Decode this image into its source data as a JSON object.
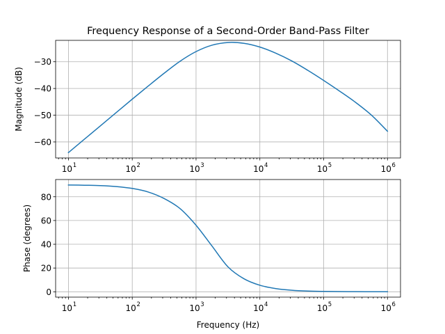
{
  "chart_data": [
    {
      "type": "line",
      "title": "Frequency Response of a Second-Order Band-Pass Filter",
      "xlabel": "",
      "ylabel": "Magnitude (dB)",
      "x_scale": "log",
      "xlim": [
        6.3,
        1600000.0
      ],
      "ylim": [
        -66,
        -22
      ],
      "grid": true,
      "x_ticks": [
        10,
        100,
        1000,
        10000,
        100000,
        1000000
      ],
      "x_tick_labels": [
        "10",
        "10",
        "10",
        "10",
        "10",
        "10"
      ],
      "x_tick_exponents": [
        "1",
        "2",
        "3",
        "4",
        "5",
        "6"
      ],
      "y_ticks": [
        -60,
        -50,
        -40,
        -30
      ],
      "y_tick_labels": [
        "−60",
        "−50",
        "−40",
        "−30"
      ],
      "series": [
        {
          "color": "#1f77b4",
          "x": [
            10,
            17.78,
            31.62,
            56.23,
            100,
            177.8,
            316.2,
            562.3,
            1000,
            1778,
            3162,
            5623,
            10000,
            17783,
            31623,
            56234,
            100000,
            177828,
            316228,
            562341,
            1000000
          ],
          "y": [
            -64.0,
            -59.0,
            -54.0,
            -49.0,
            -44.0,
            -39.1,
            -34.3,
            -29.8,
            -26.2,
            -23.8,
            -22.8,
            -23.1,
            -24.5,
            -26.8,
            -29.7,
            -33.2,
            -37.0,
            -41.0,
            -45.2,
            -50.0,
            -56.0
          ]
        }
      ]
    },
    {
      "type": "line",
      "title": "",
      "xlabel": "Frequency (Hz)",
      "ylabel": "Phase (degrees)",
      "x_scale": "log",
      "xlim": [
        6.3,
        1600000.0
      ],
      "ylim": [
        -4.5,
        94.5
      ],
      "grid": true,
      "x_ticks": [
        10,
        100,
        1000,
        10000,
        100000,
        1000000
      ],
      "x_tick_labels": [
        "10",
        "10",
        "10",
        "10",
        "10",
        "10"
      ],
      "x_tick_exponents": [
        "1",
        "2",
        "3",
        "4",
        "5",
        "6"
      ],
      "y_ticks": [
        0,
        20,
        40,
        60,
        80
      ],
      "y_tick_labels": [
        "0",
        "20",
        "40",
        "60",
        "80"
      ],
      "series": [
        {
          "color": "#1f77b4",
          "x": [
            10,
            17.78,
            31.62,
            56.23,
            100,
            177.8,
            316.2,
            562.3,
            1000,
            1778,
            3162,
            5623,
            10000,
            17783,
            31623,
            56234,
            100000,
            177828,
            316228,
            562341,
            1000000
          ],
          "y": [
            89.9,
            89.7,
            89.4,
            88.6,
            87.0,
            84.0,
            78.5,
            70.0,
            56.0,
            38.5,
            21.0,
            11.0,
            5.5,
            2.7,
            1.3,
            0.6,
            0.3,
            0.15,
            0.08,
            0.04,
            0.02
          ]
        }
      ]
    }
  ]
}
